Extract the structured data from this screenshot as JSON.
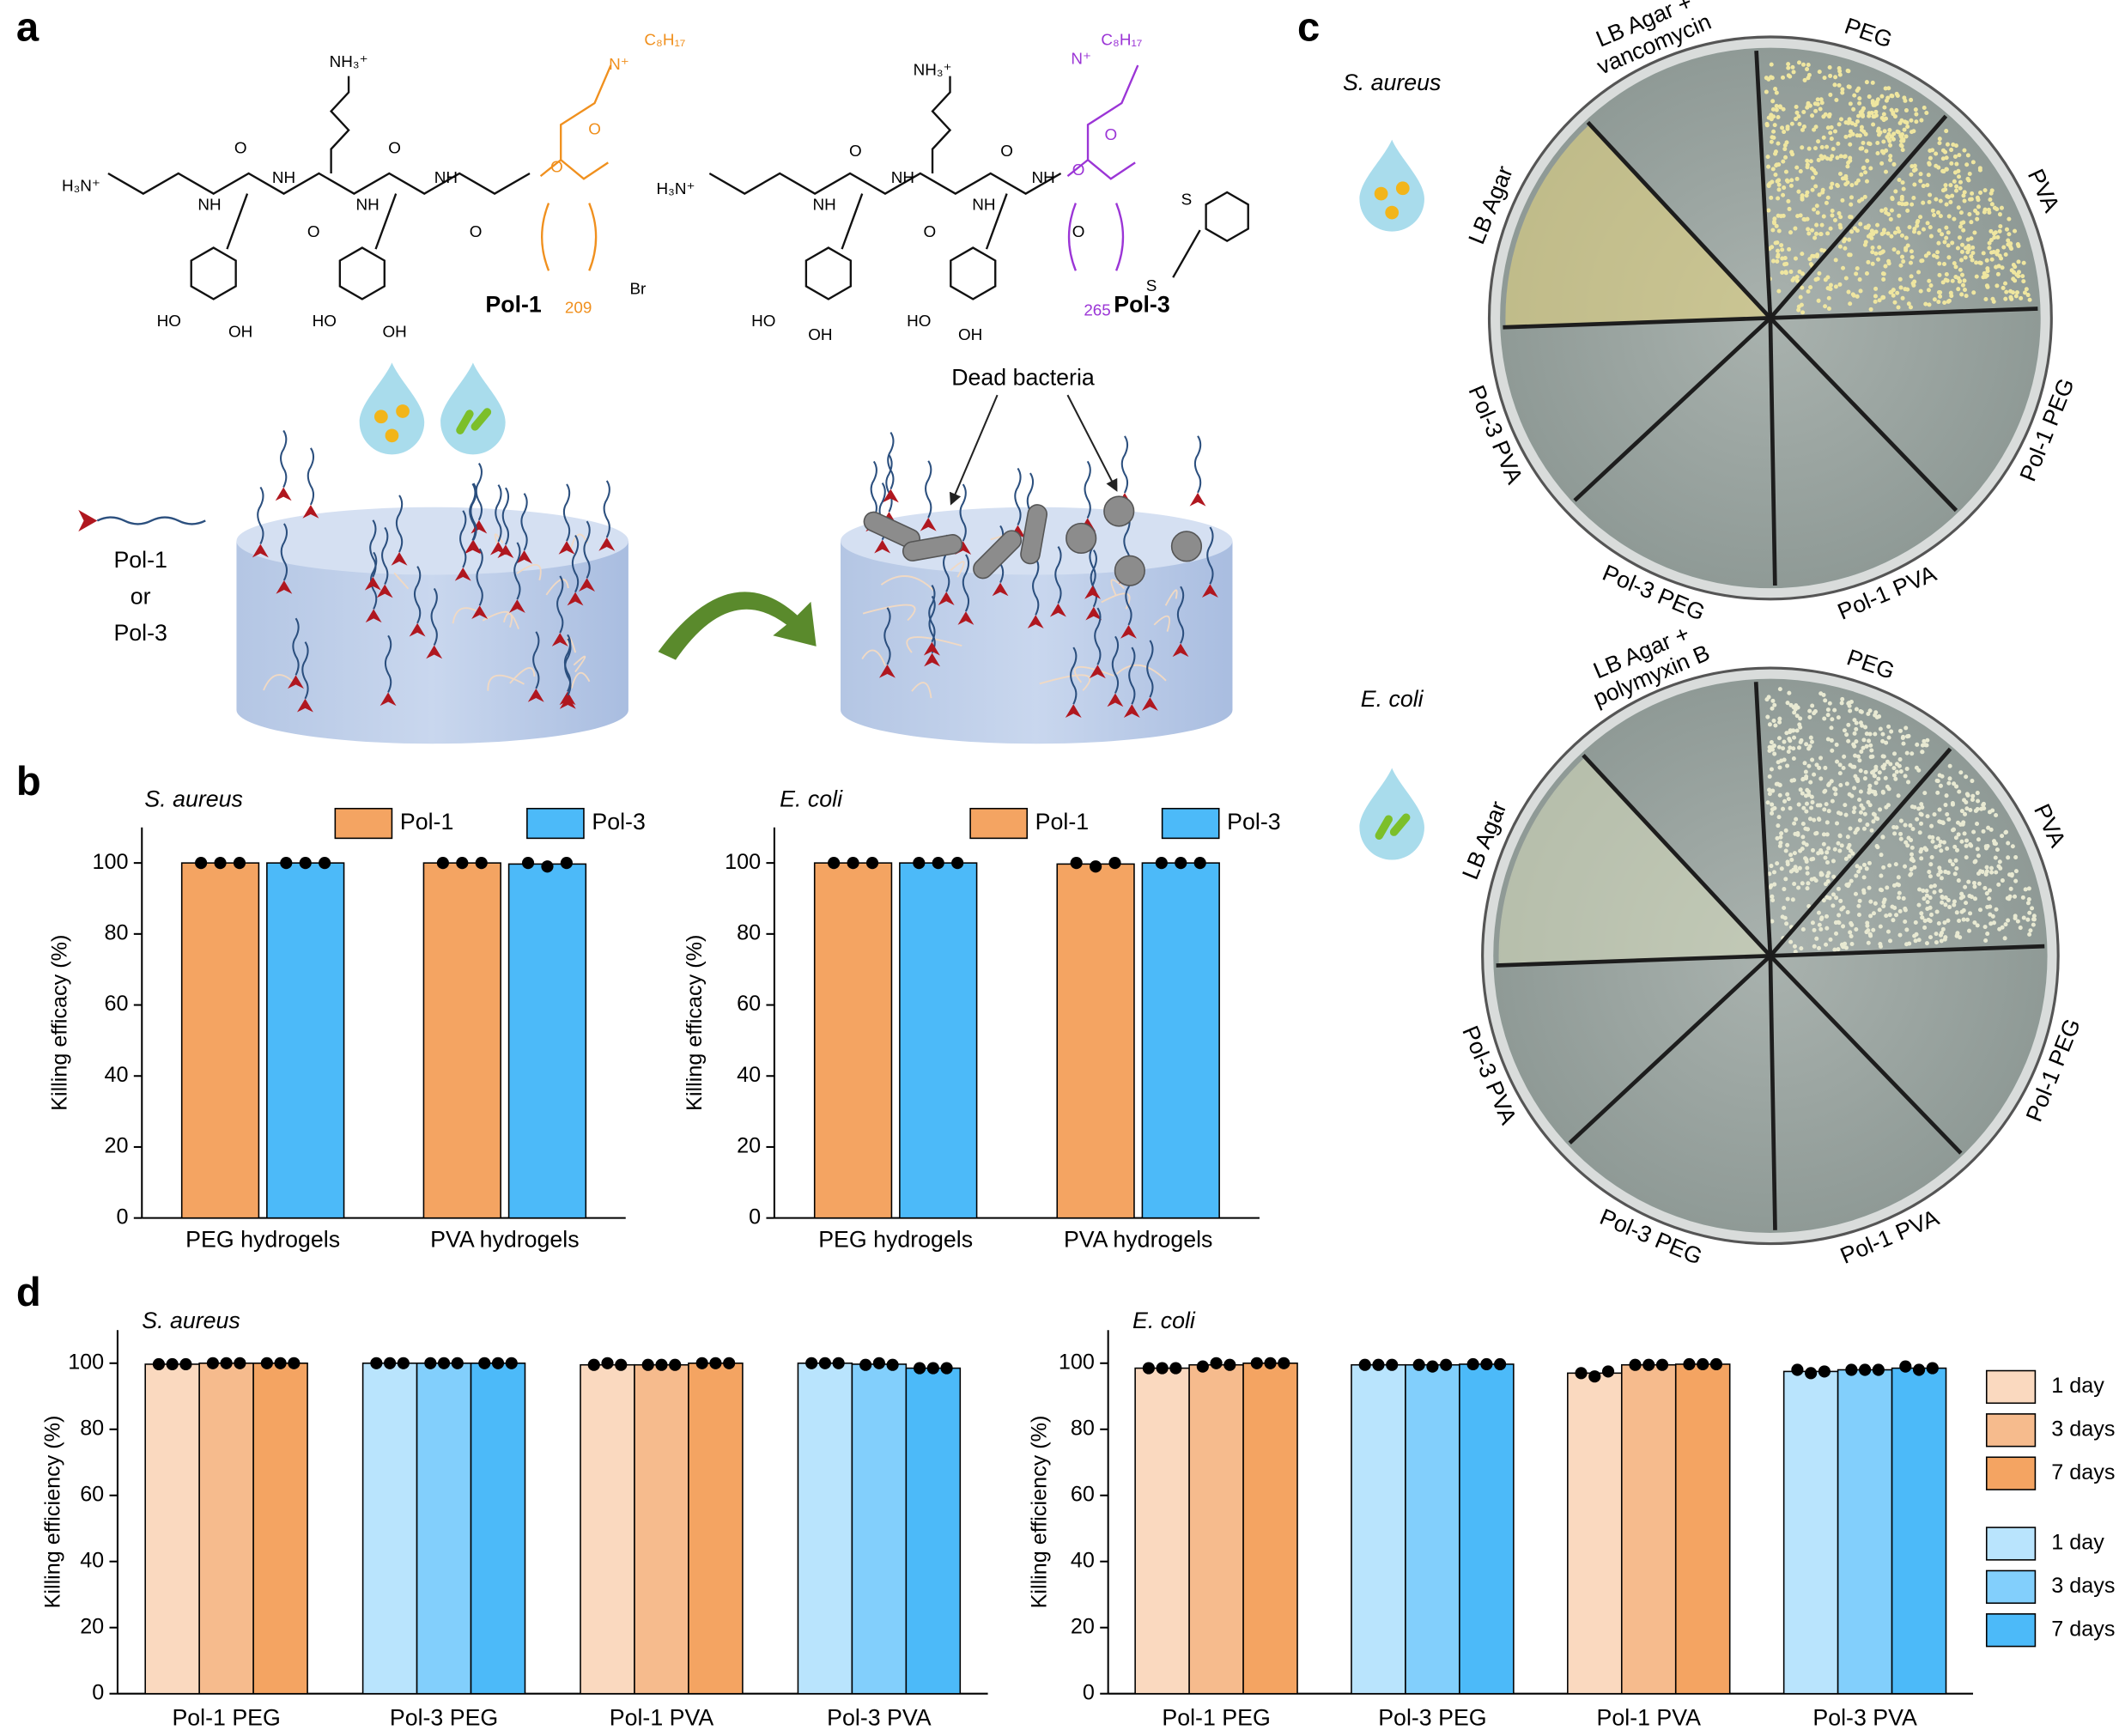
{
  "panel_labels": [
    "a",
    "b",
    "c",
    "d"
  ],
  "structures": [
    {
      "name": "Pol-1",
      "atoms": [
        "H₃N⁺",
        "NH",
        "NH",
        "NH",
        "NH",
        "O",
        "O",
        "O",
        "O",
        "NH₃⁺",
        "HO",
        "OH",
        "HO",
        "OH",
        "O",
        "O",
        "N⁺",
        "C₈H₁₇",
        "Br",
        "209"
      ]
    },
    {
      "name": "Pol-3",
      "atoms": [
        "H₃N⁺",
        "NH",
        "NH",
        "NH",
        "NH",
        "O",
        "O",
        "O",
        "O",
        "NH₃⁺",
        "HO",
        "OH",
        "HO",
        "OH",
        "O",
        "O",
        "N⁺",
        "C₈H₁₇",
        "S",
        "S",
        "265"
      ]
    }
  ],
  "scheme": {
    "tether": [
      "Pol-1",
      "or",
      "Pol-3"
    ],
    "dead": "Dead bacteria"
  },
  "plates": [
    {
      "organism": "S. aureus",
      "control": [
        "LB Agar +",
        "vancomycin"
      ],
      "sectors": [
        "PEG",
        "PVA",
        "Pol-1 PEG",
        "Pol-1 PVA",
        "Pol-3 PEG",
        "Pol-3 PVA",
        "LB Agar"
      ]
    },
    {
      "organism": "E. coli",
      "control": [
        "LB Agar +",
        "polymyxin B"
      ],
      "sectors": [
        "PEG",
        "PVA",
        "Pol-1 PEG",
        "Pol-1 PVA",
        "Pol-3 PEG",
        "Pol-3 PVA",
        "LB Agar"
      ]
    }
  ],
  "chart_data": [
    {
      "type": "bar",
      "subtitle": "S. aureus",
      "ylabel": "Killing efficacy (%)",
      "categories": [
        "PEG hydrogels",
        "PVA hydrogels"
      ],
      "series": [
        {
          "name": "Pol-1",
          "color": "#f4a462",
          "values": [
            100,
            100
          ],
          "points": [
            [
              100,
              100,
              100
            ],
            [
              100,
              100,
              100
            ]
          ]
        },
        {
          "name": "Pol-3",
          "color": "#4cbaf9",
          "values": [
            100,
            99.7
          ],
          "points": [
            [
              100,
              100,
              100
            ],
            [
              100,
              99,
              100
            ]
          ]
        }
      ],
      "ylim": [
        0,
        110
      ],
      "yticks": [
        0,
        20,
        40,
        60,
        80,
        100
      ],
      "legend": "top"
    },
    {
      "type": "bar",
      "subtitle": "E. coli",
      "ylabel": "Killing efficacy (%)",
      "categories": [
        "PEG hydrogels",
        "PVA hydrogels"
      ],
      "series": [
        {
          "name": "Pol-1",
          "color": "#f4a462",
          "values": [
            100,
            99.7
          ],
          "points": [
            [
              100,
              100,
              100
            ],
            [
              100,
              99,
              100
            ]
          ]
        },
        {
          "name": "Pol-3",
          "color": "#4cbaf9",
          "values": [
            100,
            100
          ],
          "points": [
            [
              100,
              100,
              100
            ],
            [
              100,
              100,
              100
            ]
          ]
        }
      ],
      "ylim": [
        0,
        110
      ],
      "yticks": [
        0,
        20,
        40,
        60,
        80,
        100
      ],
      "legend": "top"
    },
    {
      "type": "bar",
      "subtitle": "S. aureus",
      "ylabel": "Killing efficiency (%)",
      "categories": [
        "Pol-1 PEG",
        "Pol-3 PEG",
        "Pol-1 PVA",
        "Pol-3 PVA"
      ],
      "series": [
        {
          "color": "#fad9bf",
          "values": [
            99.7,
            null,
            99.5,
            null
          ],
          "points": [
            [
              99.7,
              99.7,
              99.7
            ],
            null,
            [
              99.5,
              100,
              99.5
            ],
            null
          ]
        },
        {
          "color": "#f6bb8d",
          "values": [
            100,
            null,
            99.5,
            null
          ],
          "points": [
            [
              100,
              100,
              100
            ],
            null,
            [
              99.5,
              99.5,
              99.5
            ],
            null
          ]
        },
        {
          "color": "#f4a462",
          "values": [
            100,
            null,
            100,
            null
          ],
          "points": [
            [
              100,
              100,
              100
            ],
            null,
            [
              100,
              100,
              100
            ],
            null
          ]
        },
        {
          "color": "#b9e4fd",
          "values": [
            null,
            100,
            null,
            100
          ],
          "points": [
            null,
            [
              100,
              100,
              100
            ],
            null,
            [
              100,
              100,
              100
            ]
          ]
        },
        {
          "color": "#82cffc",
          "values": [
            null,
            100,
            null,
            99.7
          ],
          "points": [
            null,
            [
              100,
              100,
              100
            ],
            null,
            [
              99.5,
              100,
              99.5
            ]
          ]
        },
        {
          "color": "#4cbaf9",
          "values": [
            null,
            100,
            null,
            98.5
          ],
          "points": [
            null,
            [
              100,
              100,
              100
            ],
            null,
            [
              98.5,
              98.5,
              98.5
            ]
          ]
        }
      ],
      "ylim": [
        0,
        110
      ],
      "yticks": [
        0,
        20,
        40,
        60,
        80,
        100
      ]
    },
    {
      "type": "bar",
      "subtitle": "E. coli",
      "ylabel": "Killing efficiency (%)",
      "categories": [
        "Pol-1 PEG",
        "Pol-3 PEG",
        "Pol-1 PVA",
        "Pol-3 PVA"
      ],
      "series": [
        {
          "name": "1 day",
          "color": "#fad9bf",
          "values": [
            98.5,
            null,
            97,
            null
          ],
          "points": [
            [
              98.5,
              98.5,
              98.5
            ],
            null,
            [
              97,
              96,
              97.5
            ],
            null
          ]
        },
        {
          "name": "3 days",
          "color": "#f6bb8d",
          "values": [
            99.5,
            null,
            99.5,
            null
          ],
          "points": [
            [
              99,
              100,
              99.5
            ],
            null,
            [
              99.5,
              99.5,
              99.5
            ],
            null
          ]
        },
        {
          "name": "7 days",
          "color": "#f4a462",
          "values": [
            100,
            null,
            99.7,
            null
          ],
          "points": [
            [
              100,
              100,
              100
            ],
            null,
            [
              99.7,
              99.7,
              99.7
            ],
            null
          ]
        },
        {
          "name": "1 day",
          "color": "#b9e4fd",
          "values": [
            null,
            99.5,
            null,
            97.5
          ],
          "points": [
            null,
            [
              99.5,
              99.5,
              99.5
            ],
            null,
            [
              98,
              97,
              97.5
            ]
          ]
        },
        {
          "name": "3 days",
          "color": "#82cffc",
          "values": [
            null,
            99.5,
            null,
            98
          ],
          "points": [
            null,
            [
              99.5,
              99,
              99.5
            ],
            null,
            [
              98,
              98,
              98
            ]
          ]
        },
        {
          "name": "7 days",
          "color": "#4cbaf9",
          "values": [
            null,
            99.7,
            null,
            98.5
          ],
          "points": [
            null,
            [
              99.7,
              99.7,
              99.7
            ],
            null,
            [
              99,
              98,
              98.5
            ]
          ]
        }
      ],
      "ylim": [
        0,
        110
      ],
      "yticks": [
        0,
        20,
        40,
        60,
        80,
        100
      ],
      "legend": "right"
    }
  ]
}
